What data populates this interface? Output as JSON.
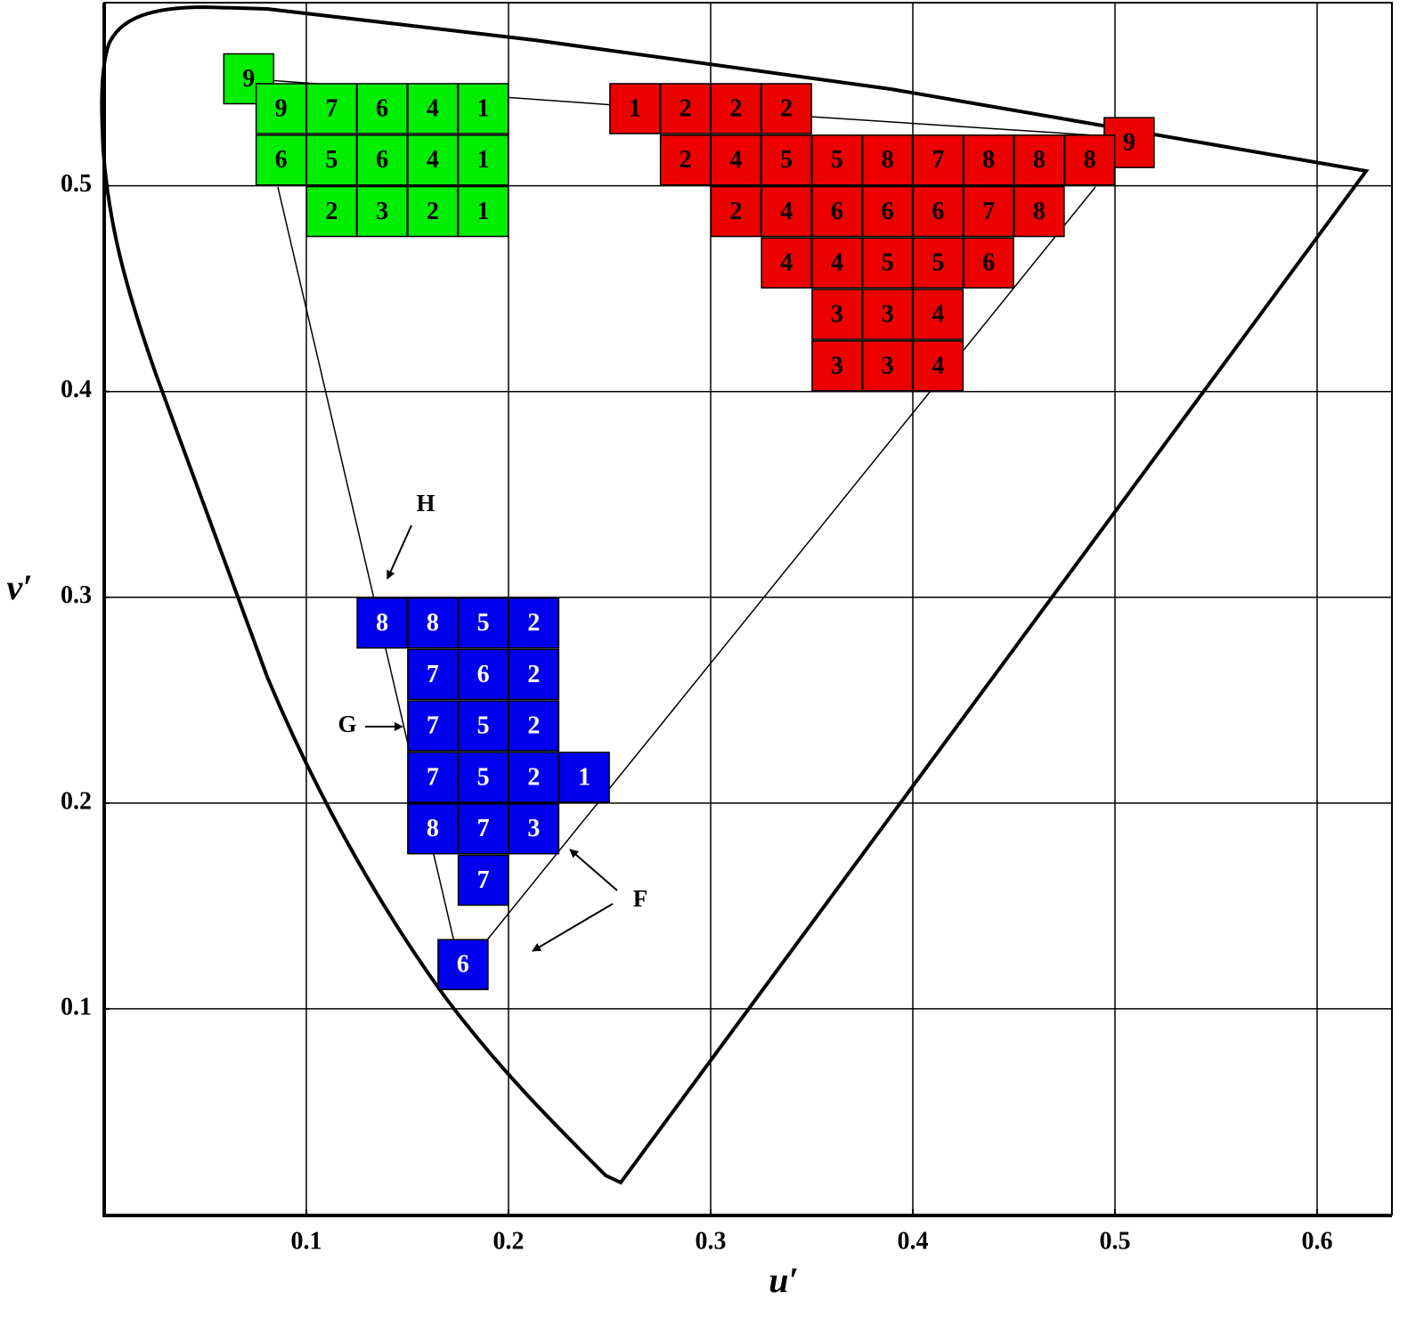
{
  "chart_data": {
    "type": "scatter",
    "x_label": "u′",
    "y_label": "v′",
    "xlim": [
      0,
      0.637
    ],
    "ylim": [
      0,
      0.589
    ],
    "xticks": [
      0.1,
      0.2,
      0.3,
      0.4,
      0.5,
      0.6
    ],
    "yticks": [
      0.1,
      0.2,
      0.3,
      0.4,
      0.5
    ],
    "grid": true,
    "annotations": [
      "H",
      "G",
      "F"
    ],
    "series": [
      {
        "color": "#00ee00",
        "label_color": "#000000",
        "x": [
          0.0715,
          0.0875,
          0.1125,
          0.1375,
          0.1625,
          0.1875,
          0.0875,
          0.1125,
          0.1375,
          0.1625,
          0.1875,
          0.1125,
          0.1375,
          0.1625,
          0.1875
        ],
        "y": [
          0.552,
          0.5375,
          0.5375,
          0.5375,
          0.5375,
          0.5375,
          0.5125,
          0.5125,
          0.5125,
          0.5125,
          0.5125,
          0.4875,
          0.4875,
          0.4875,
          0.4875
        ],
        "values": [
          9,
          9,
          7,
          6,
          4,
          1,
          6,
          5,
          6,
          4,
          1,
          2,
          3,
          2,
          1
        ]
      },
      {
        "color": "#ee0000",
        "label_color": "#000000",
        "x": [
          0.2625,
          0.2875,
          0.3125,
          0.3375,
          0.507,
          0.2875,
          0.3125,
          0.3375,
          0.3625,
          0.3875,
          0.4125,
          0.4375,
          0.4625,
          0.4875,
          0.3125,
          0.3375,
          0.3625,
          0.3875,
          0.4125,
          0.4375,
          0.4625,
          0.3375,
          0.3625,
          0.3875,
          0.4125,
          0.4375,
          0.3625,
          0.3875,
          0.4125,
          0.3625,
          0.3875,
          0.4125
        ],
        "y": [
          0.5375,
          0.5375,
          0.5375,
          0.5375,
          0.521,
          0.5125,
          0.5125,
          0.5125,
          0.5125,
          0.5125,
          0.5125,
          0.5125,
          0.5125,
          0.5125,
          0.4875,
          0.4875,
          0.4875,
          0.4875,
          0.4875,
          0.4875,
          0.4875,
          0.4625,
          0.4625,
          0.4625,
          0.4625,
          0.4625,
          0.4375,
          0.4375,
          0.4375,
          0.4125,
          0.4125,
          0.4125
        ],
        "values": [
          1,
          2,
          2,
          2,
          9,
          2,
          4,
          5,
          5,
          8,
          7,
          8,
          8,
          8,
          2,
          4,
          6,
          6,
          6,
          7,
          8,
          4,
          4,
          5,
          5,
          6,
          3,
          3,
          4,
          3,
          3,
          4
        ]
      },
      {
        "color": "#0000ee",
        "label_color": "#ffffff",
        "x": [
          0.1375,
          0.1625,
          0.1875,
          0.2125,
          0.1625,
          0.1875,
          0.2125,
          0.1625,
          0.1875,
          0.2125,
          0.1625,
          0.1875,
          0.2125,
          0.2375,
          0.1625,
          0.1875,
          0.2125,
          0.1875,
          0.1775
        ],
        "y": [
          0.2875,
          0.2875,
          0.2875,
          0.2875,
          0.2625,
          0.2625,
          0.2625,
          0.2375,
          0.2375,
          0.2375,
          0.2125,
          0.2125,
          0.2125,
          0.2125,
          0.1875,
          0.1875,
          0.1875,
          0.1625,
          0.1215
        ],
        "values": [
          8,
          8,
          5,
          2,
          7,
          6,
          2,
          7,
          5,
          2,
          7,
          5,
          2,
          1,
          8,
          7,
          3,
          7,
          6
        ]
      }
    ]
  }
}
